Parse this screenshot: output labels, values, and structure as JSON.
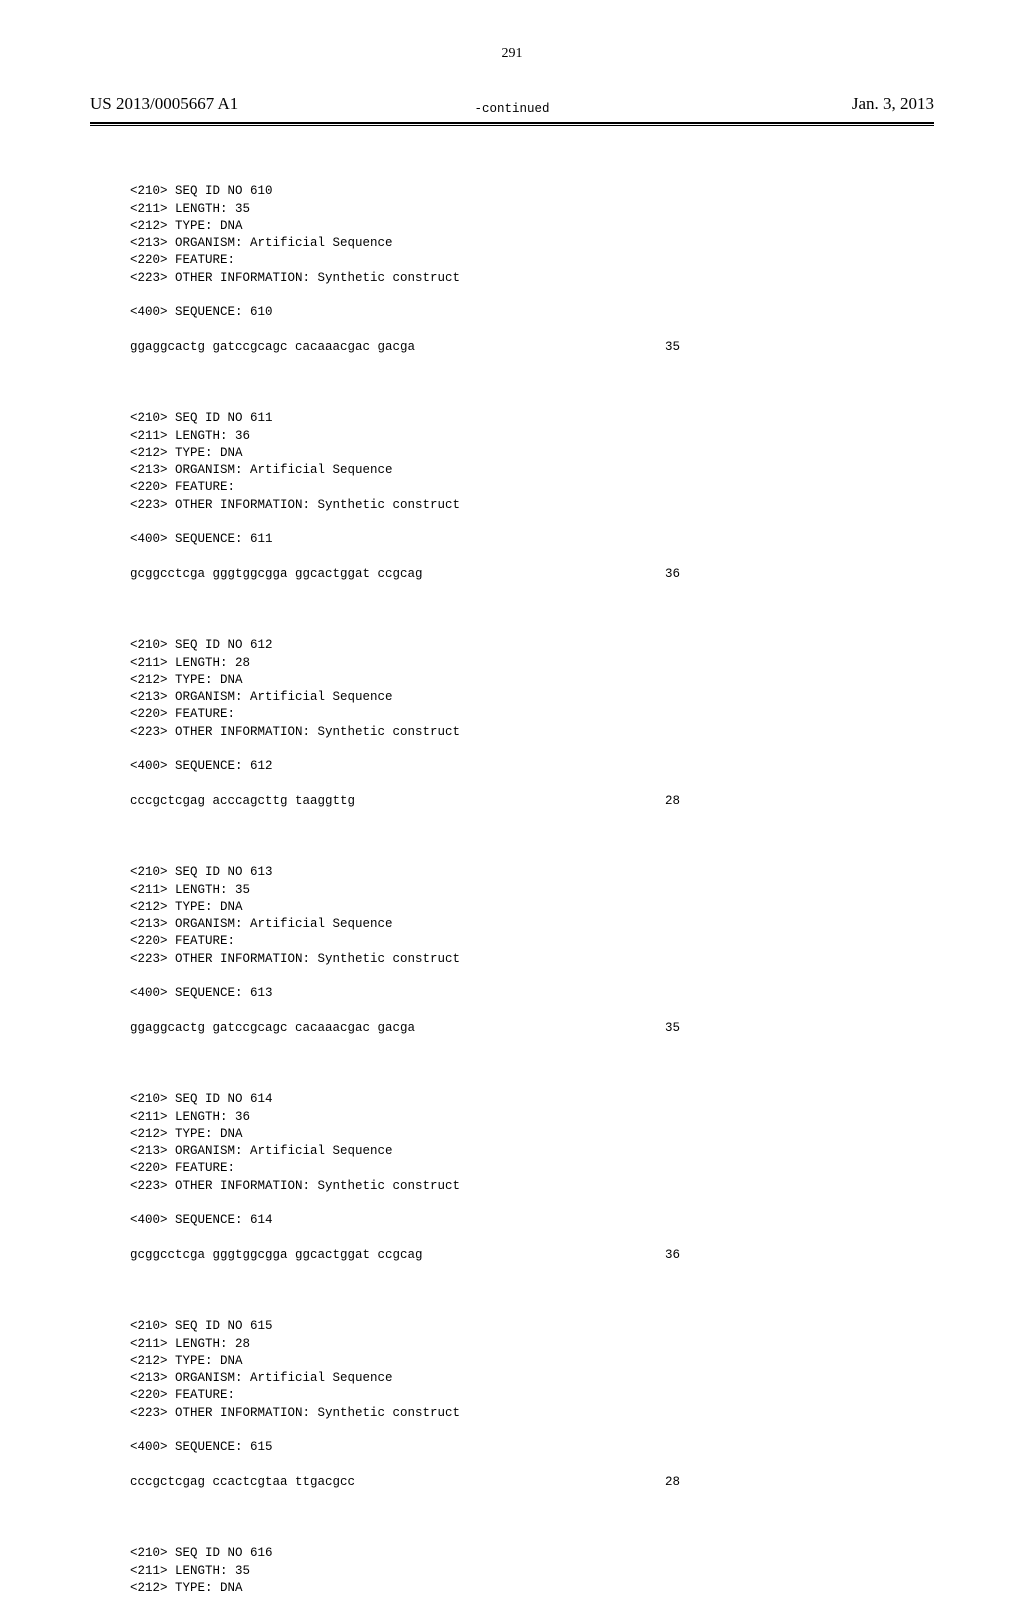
{
  "header": {
    "publication_number": "US 2013/0005667 A1",
    "publication_date": "Jan. 3, 2013"
  },
  "page_number": "291",
  "continued_label": "-continued",
  "sequences": [
    {
      "id": "610",
      "length": "35",
      "type": "DNA",
      "organism": "Artificial Sequence",
      "feature": "",
      "other_info": "Synthetic construct",
      "seq_num": "610",
      "sequence": "ggaggcactg gatccgcagc cacaaacgac gacga",
      "seq_length_display": "35"
    },
    {
      "id": "611",
      "length": "36",
      "type": "DNA",
      "organism": "Artificial Sequence",
      "feature": "",
      "other_info": "Synthetic construct",
      "seq_num": "611",
      "sequence": "gcggcctcga gggtggcgga ggcactggat ccgcag",
      "seq_length_display": "36"
    },
    {
      "id": "612",
      "length": "28",
      "type": "DNA",
      "organism": "Artificial Sequence",
      "feature": "",
      "other_info": "Synthetic construct",
      "seq_num": "612",
      "sequence": "cccgctcgag acccagcttg taaggttg",
      "seq_length_display": "28"
    },
    {
      "id": "613",
      "length": "35",
      "type": "DNA",
      "organism": "Artificial Sequence",
      "feature": "",
      "other_info": "Synthetic construct",
      "seq_num": "613",
      "sequence": "ggaggcactg gatccgcagc cacaaacgac gacga",
      "seq_length_display": "35"
    },
    {
      "id": "614",
      "length": "36",
      "type": "DNA",
      "organism": "Artificial Sequence",
      "feature": "",
      "other_info": "Synthetic construct",
      "seq_num": "614",
      "sequence": "gcggcctcga gggtggcgga ggcactggat ccgcag",
      "seq_length_display": "36"
    },
    {
      "id": "615",
      "length": "28",
      "type": "DNA",
      "organism": "Artificial Sequence",
      "feature": "",
      "other_info": "Synthetic construct",
      "seq_num": "615",
      "sequence": "cccgctcgag ccactcgtaa ttgacgcc",
      "seq_length_display": "28"
    }
  ],
  "trailing": {
    "id": "616",
    "length": "35",
    "type": "DNA"
  },
  "labels": {
    "seq_id_prefix": "<210> SEQ ID NO ",
    "length_prefix": "<211> LENGTH: ",
    "type_prefix": "<212> TYPE: ",
    "organism_prefix": "<213> ORGANISM: ",
    "feature_prefix": "<220> FEATURE:",
    "other_info_prefix": "<223> OTHER INFORMATION: ",
    "sequence_prefix": "<400> SEQUENCE: "
  }
}
